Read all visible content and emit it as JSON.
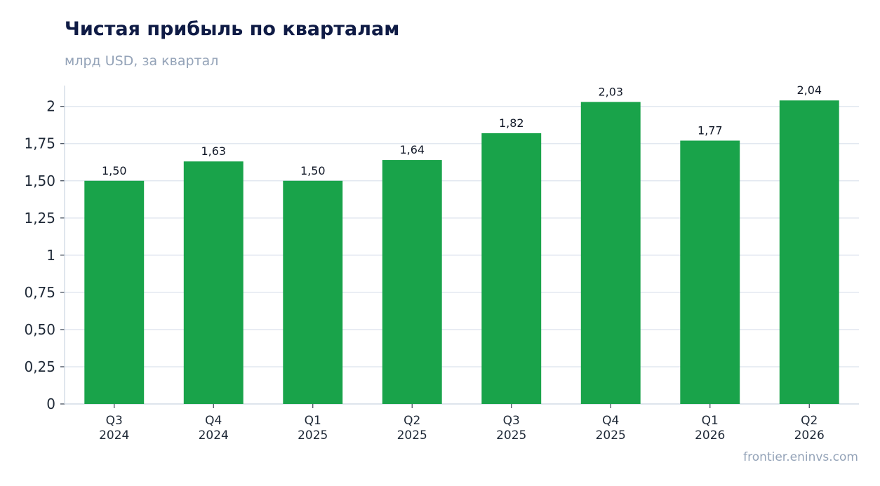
{
  "header": {
    "title": "Чистая прибыль по кварталам",
    "subtitle": "млрд USD, за квартал"
  },
  "footer": {
    "source": "frontier.eninvs.com"
  },
  "colors": {
    "bar": "#19a34a",
    "grid": "#e2e8f0",
    "axis": "#cbd5e1",
    "title": "#0f1b45",
    "muted": "#94a3b8"
  },
  "chart_data": {
    "type": "bar",
    "title": "Чистая прибыль по кварталам",
    "subtitle": "млрд USD, за квартал",
    "categories": [
      [
        "Q3",
        "2024"
      ],
      [
        "Q4",
        "2024"
      ],
      [
        "Q1",
        "2025"
      ],
      [
        "Q2",
        "2025"
      ],
      [
        "Q3",
        "2025"
      ],
      [
        "Q4",
        "2025"
      ],
      [
        "Q1",
        "2026"
      ],
      [
        "Q2",
        "2026"
      ]
    ],
    "values": [
      1.5,
      1.63,
      1.5,
      1.64,
      1.82,
      2.03,
      1.77,
      2.04
    ],
    "data_labels": [
      "1,50",
      "1,63",
      "1,50",
      "1,64",
      "1,82",
      "2,03",
      "1,77",
      "2,04"
    ],
    "yticks": [
      0,
      0.25,
      0.5,
      0.75,
      1,
      1.25,
      1.5,
      1.75,
      2
    ],
    "ytick_labels": [
      "0",
      "0,25",
      "0,50",
      "0,75",
      "1",
      "1,25",
      "1,50",
      "1,75",
      "2"
    ],
    "ylim": [
      0,
      2.14
    ],
    "grid": true,
    "legend": "none"
  }
}
